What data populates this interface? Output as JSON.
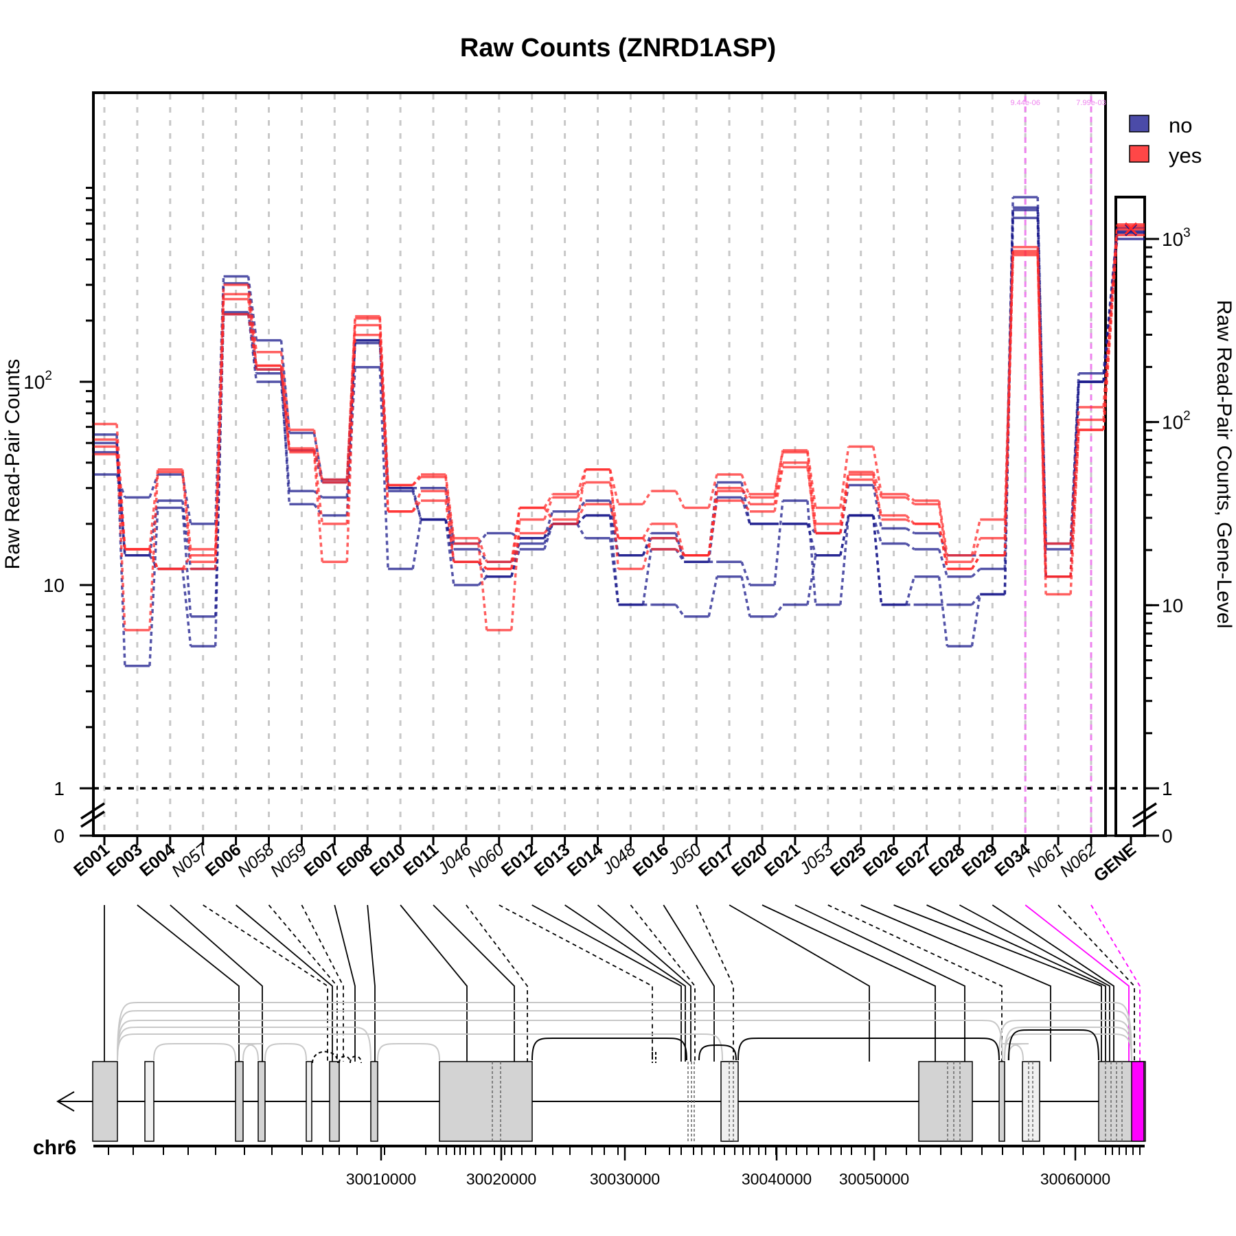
{
  "chart_data": {
    "type": "line",
    "title": "Raw Counts (ZNRD1ASP)",
    "ylabel": "Raw Read-Pair Counts",
    "ylabel_right": "Raw Read-Pair Counts, Gene-Level",
    "y_scale": "log",
    "y_ticks": [
      {
        "label": "1",
        "value": 1
      },
      {
        "label": "10",
        "value": 10
      },
      {
        "label": "10",
        "sup": "2",
        "value": 100
      }
    ],
    "y_zero_label": "0",
    "y_right_ticks": [
      {
        "label": "1",
        "value": 1
      },
      {
        "label": "10",
        "value": 10
      },
      {
        "label": "10",
        "sup": "2",
        "value": 100
      },
      {
        "label": "10",
        "sup": "3",
        "value": 1000
      }
    ],
    "y_right_zero_label": "0",
    "colors": {
      "no": "#1a1a8c",
      "yes": "#ff2a2a",
      "sig": "#ee82ee",
      "novel_sig": "#ff00ff"
    },
    "legend": [
      {
        "label": "no",
        "color": "#4b4ba8"
      },
      {
        "label": "yes",
        "color": "#ff4747"
      }
    ],
    "legend_position": "top-right",
    "features": [
      {
        "id": "E001",
        "type": "exon"
      },
      {
        "id": "E003",
        "type": "exon"
      },
      {
        "id": "E004",
        "type": "exon"
      },
      {
        "id": "N057",
        "type": "novel"
      },
      {
        "id": "E006",
        "type": "exon"
      },
      {
        "id": "N058",
        "type": "novel"
      },
      {
        "id": "N059",
        "type": "novel"
      },
      {
        "id": "E007",
        "type": "exon"
      },
      {
        "id": "E008",
        "type": "exon"
      },
      {
        "id": "E010",
        "type": "exon"
      },
      {
        "id": "E011",
        "type": "exon"
      },
      {
        "id": "J046",
        "type": "novel"
      },
      {
        "id": "N060",
        "type": "novel"
      },
      {
        "id": "E012",
        "type": "exon"
      },
      {
        "id": "E013",
        "type": "exon"
      },
      {
        "id": "E014",
        "type": "exon"
      },
      {
        "id": "J048",
        "type": "novel"
      },
      {
        "id": "E016",
        "type": "exon"
      },
      {
        "id": "J050",
        "type": "novel"
      },
      {
        "id": "E017",
        "type": "exon"
      },
      {
        "id": "E020",
        "type": "exon"
      },
      {
        "id": "E021",
        "type": "exon"
      },
      {
        "id": "J053",
        "type": "novel"
      },
      {
        "id": "E025",
        "type": "exon"
      },
      {
        "id": "E026",
        "type": "exon"
      },
      {
        "id": "E027",
        "type": "exon"
      },
      {
        "id": "E028",
        "type": "exon"
      },
      {
        "id": "E029",
        "type": "exon"
      },
      {
        "id": "E034",
        "type": "exon"
      },
      {
        "id": "N061",
        "type": "novel"
      },
      {
        "id": "N062",
        "type": "novel"
      }
    ],
    "gene_label": "GENE",
    "series": [
      {
        "group": "no",
        "values": [
          35,
          27,
          35,
          20,
          330,
          160,
          56,
          33,
          155,
          30,
          30,
          16,
          18,
          17,
          23,
          26,
          14,
          17,
          14,
          32,
          20,
          20,
          18,
          31,
          19,
          18,
          14,
          14,
          720,
          16,
          100
        ],
        "gene": 1080
      },
      {
        "group": "no",
        "values": [
          55,
          4,
          24,
          7,
          215,
          100,
          29,
          27,
          160,
          29,
          21,
          15,
          13,
          16,
          20,
          22,
          8,
          15,
          13,
          27,
          20,
          20,
          14,
          22,
          16,
          15,
          11,
          12,
          810,
          15,
          110
        ],
        "gene": 1150
      },
      {
        "group": "no",
        "values": [
          50,
          14,
          12,
          5,
          305,
          115,
          25,
          22,
          118,
          12,
          21,
          10,
          11,
          15,
          20,
          17,
          8,
          8,
          7,
          11,
          7,
          8,
          14,
          22,
          8,
          11,
          5,
          9,
          640,
          11,
          100
        ],
        "gene": 1000
      },
      {
        "group": "no",
        "values": [
          45,
          14,
          26,
          12,
          220,
          110,
          46,
          32,
          160,
          30,
          21,
          13,
          11,
          17,
          20,
          22,
          14,
          18,
          13,
          13,
          10,
          26,
          8,
          22,
          8,
          8,
          8,
          9,
          700,
          11,
          100
        ],
        "gene": 1100
      },
      {
        "group": "yes",
        "values": [
          62,
          15,
          37,
          15,
          300,
          140,
          58,
          32,
          210,
          31,
          35,
          17,
          13,
          24,
          28,
          37,
          25,
          29,
          24,
          35,
          27,
          46,
          24,
          48,
          28,
          26,
          14,
          21,
          460,
          16,
          75
        ],
        "gene": 1200
      },
      {
        "group": "yes",
        "values": [
          52,
          6,
          36,
          13,
          270,
          120,
          46,
          20,
          190,
          31,
          34,
          16,
          6,
          21,
          27,
          32,
          17,
          20,
          14,
          29,
          28,
          45,
          20,
          36,
          27,
          25,
          13,
          17,
          420,
          11,
          65
        ],
        "gene": 1130
      },
      {
        "group": "yes",
        "values": [
          48,
          15,
          12,
          12,
          255,
          115,
          45,
          13,
          170,
          23,
          26,
          13,
          12,
          18,
          20,
          37,
          12,
          17,
          14,
          30,
          25,
          40,
          18,
          35,
          21,
          20,
          12,
          14,
          440,
          9,
          58
        ],
        "gene": 1050
      },
      {
        "group": "yes",
        "values": [
          44,
          15,
          12,
          14,
          215,
          120,
          47,
          33,
          205,
          23,
          29,
          13,
          12,
          24,
          21,
          25,
          17,
          15,
          14,
          26,
          23,
          38,
          18,
          33,
          22,
          20,
          12,
          14,
          430,
          11,
          58
        ],
        "gene": 1170
      }
    ],
    "significant": [
      {
        "feature": "E034",
        "pvalue": "9.44e-06"
      },
      {
        "feature": "N062",
        "pvalue": "7.99e-03"
      }
    ],
    "genome": {
      "chromosome": "chr6",
      "ticks": [
        "30010000",
        "30020000",
        "30030000",
        "30040000",
        "30050000",
        "30060000"
      ],
      "strand": "minus"
    }
  }
}
